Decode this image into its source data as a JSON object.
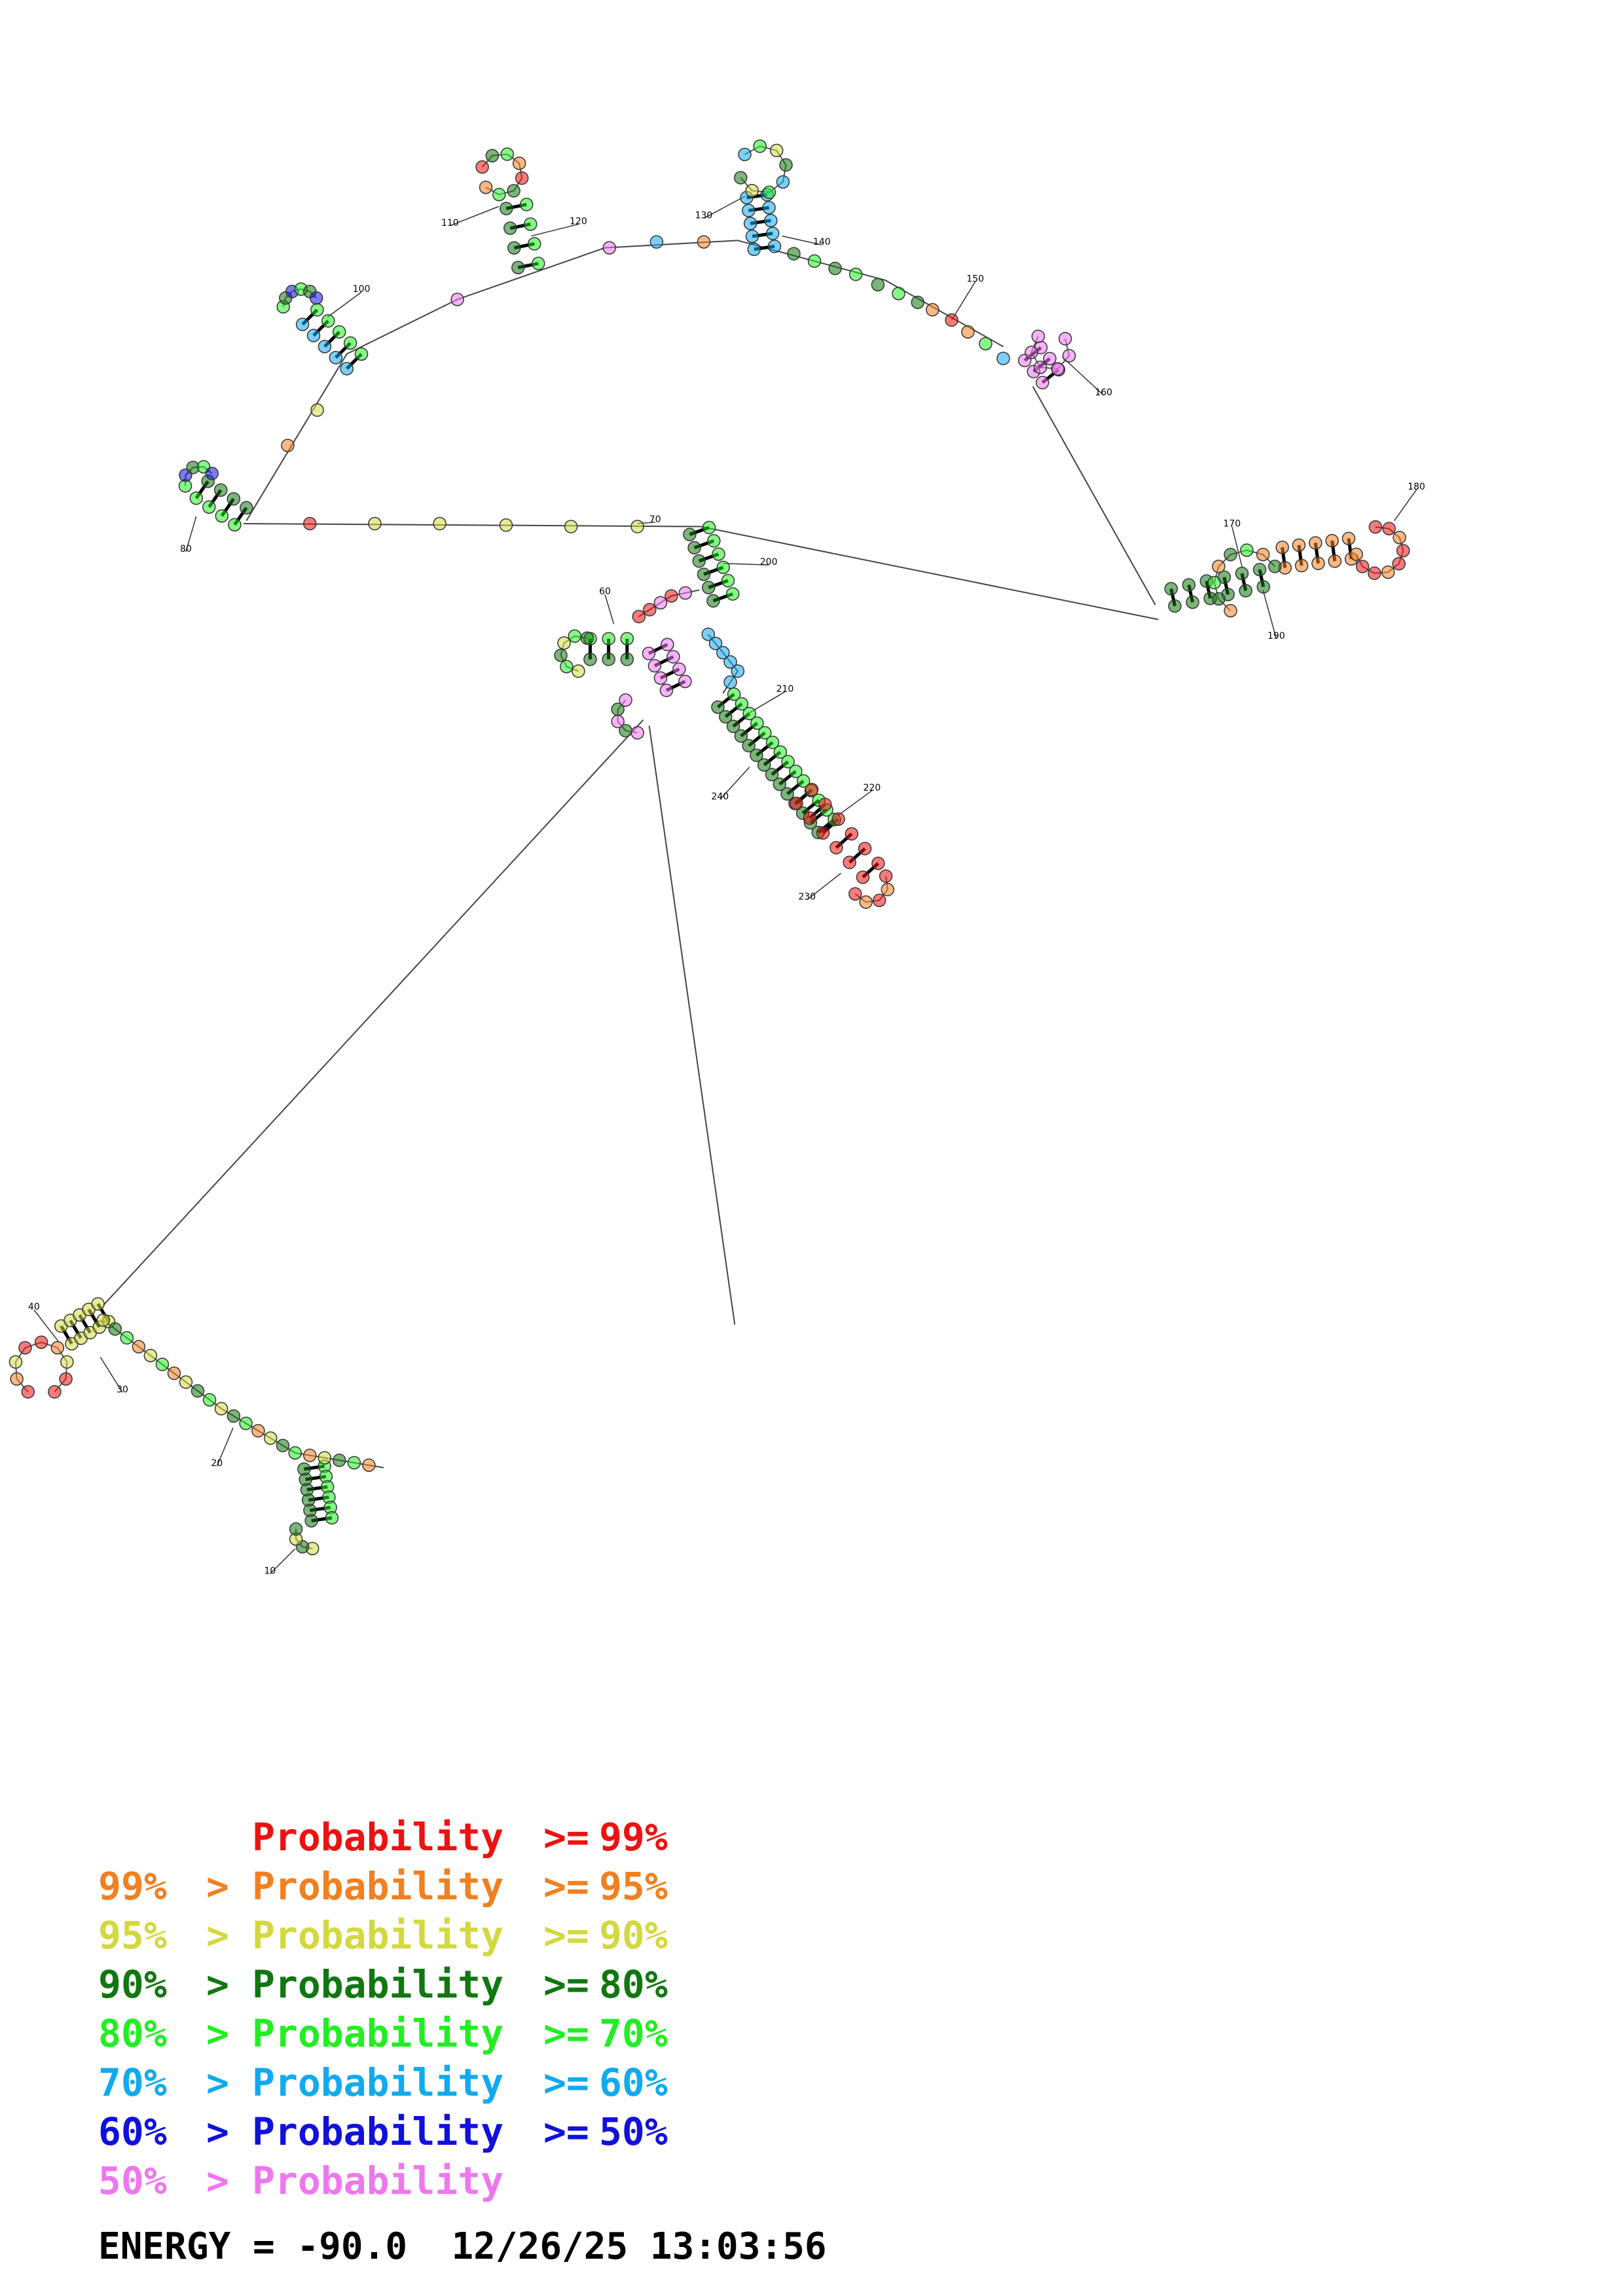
{
  "colors": {
    "p99": "#ee1111",
    "p95": "#f08020",
    "p90": "#d4d840",
    "p80": "#117711",
    "p70": "#22ee22",
    "p60": "#11aaee",
    "p50": "#1111dd",
    "plow": "#ee77ee"
  },
  "position_labels": [
    "10",
    "20",
    "30",
    "40",
    "60",
    "70",
    "80",
    "100",
    "110",
    "120",
    "130",
    "140",
    "150",
    "160",
    "170",
    "180",
    "190",
    "200",
    "210",
    "220",
    "230",
    "240"
  ],
  "legend": [
    {
      "lower": "",
      "gt": "",
      "label": "Probability",
      "cmp": ">=",
      "upper": "99%",
      "color_key": "p99"
    },
    {
      "lower": "99%",
      "gt": ">",
      "label": "Probability",
      "cmp": ">=",
      "upper": "95%",
      "color_key": "p95"
    },
    {
      "lower": "95%",
      "gt": ">",
      "label": "Probability",
      "cmp": ">=",
      "upper": "90%",
      "color_key": "p90"
    },
    {
      "lower": "90%",
      "gt": ">",
      "label": "Probability",
      "cmp": ">=",
      "upper": "80%",
      "color_key": "p80"
    },
    {
      "lower": "80%",
      "gt": ">",
      "label": "Probability",
      "cmp": ">=",
      "upper": "70%",
      "color_key": "p70"
    },
    {
      "lower": "70%",
      "gt": ">",
      "label": "Probability",
      "cmp": ">=",
      "upper": "60%",
      "color_key": "p60"
    },
    {
      "lower": "60%",
      "gt": ">",
      "label": "Probability",
      "cmp": ">=",
      "upper": "50%",
      "color_key": "p50"
    },
    {
      "lower": "50%",
      "gt": ">",
      "label": "Probability",
      "cmp": "",
      "upper": "",
      "color_key": "plow"
    }
  ],
  "footer": {
    "energy_label": "ENERGY",
    "energy_value": "-90.0",
    "date": "12/26/25",
    "time": "13:03:56"
  }
}
